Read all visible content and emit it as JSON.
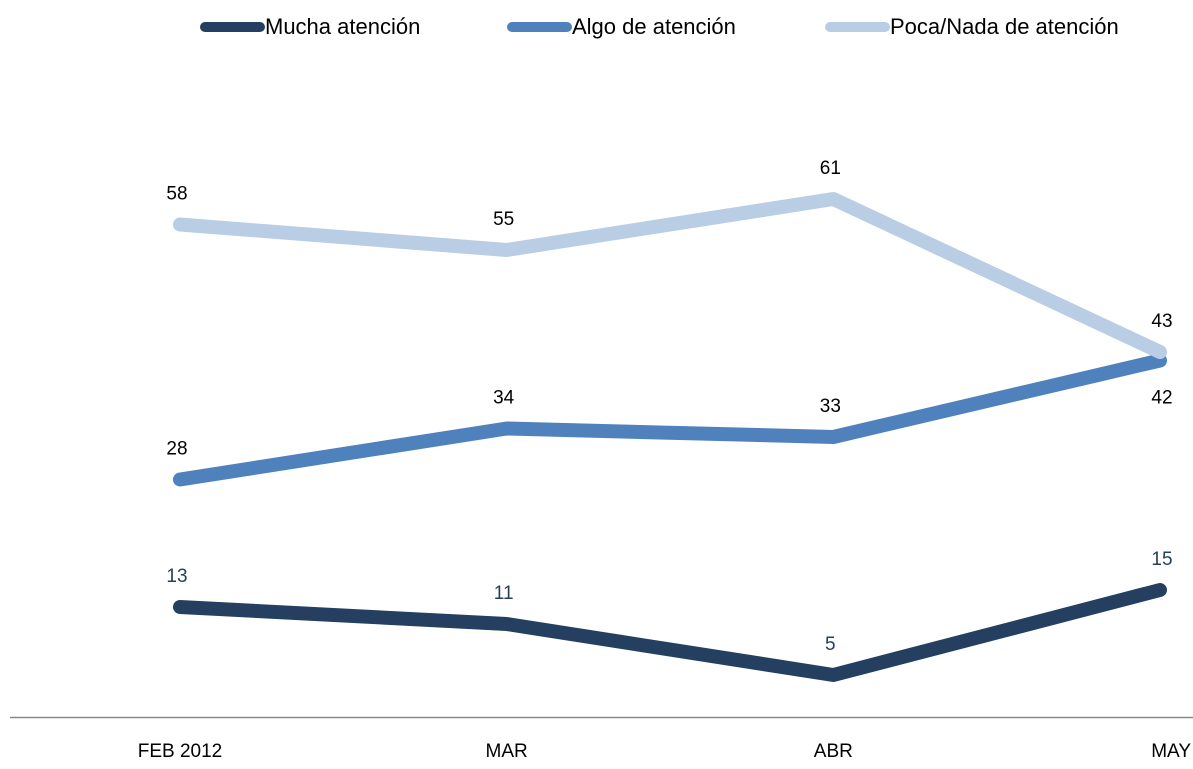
{
  "chart_data": {
    "type": "line",
    "categories": [
      "FEB 2012",
      "MAR",
      "ABR",
      "MAY"
    ],
    "series": [
      {
        "name": "Mucha atención",
        "color": "#243f60",
        "values": [
          13,
          11,
          5,
          15
        ]
      },
      {
        "name": "Algo de atención",
        "color": "#4f81bd",
        "values": [
          28,
          34,
          33,
          42
        ]
      },
      {
        "name": "Poca/Nada de atención",
        "color": "#b9cde5",
        "values": [
          58,
          55,
          61,
          43
        ]
      }
    ],
    "ylim": [
      0,
      70
    ],
    "grid": false,
    "legend": "top"
  }
}
